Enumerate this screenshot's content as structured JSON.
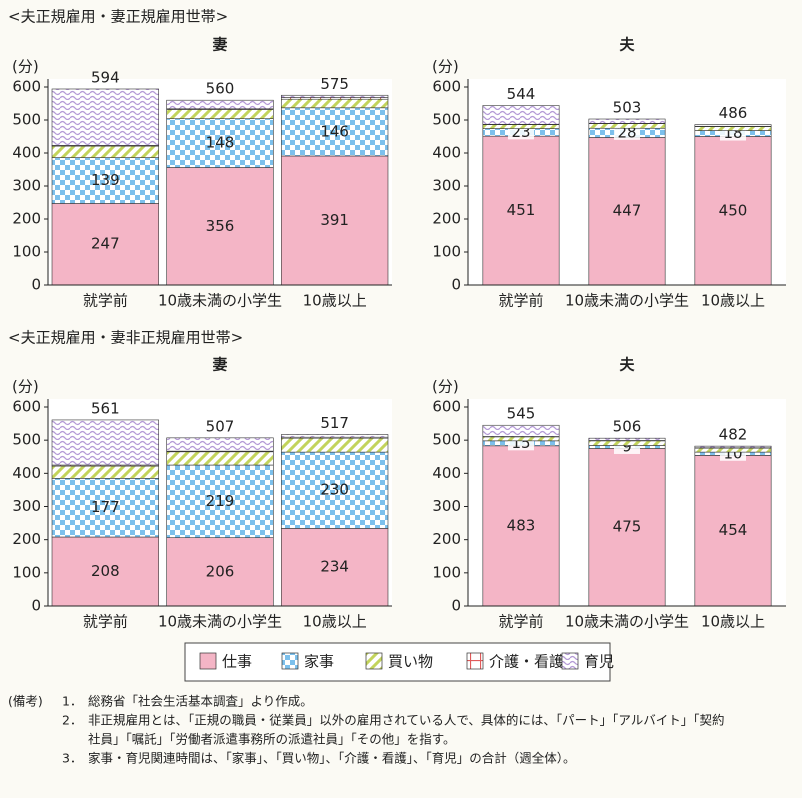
{
  "section_titles": [
    "<夫正規雇用・妻正規雇用世帯>",
    "<夫正規雇用・妻非正規雇用世帯>"
  ],
  "chart_data": [
    {
      "type": "bar",
      "stacked": true,
      "title": "妻",
      "ylabel": "(分)",
      "categories": [
        "就学前",
        "10歳未満の小学生",
        "10歳以上"
      ],
      "ylim": [
        0,
        600
      ],
      "yticks": [
        0,
        100,
        200,
        300,
        400,
        500,
        600
      ],
      "totals": [
        594,
        560,
        575
      ],
      "series": [
        {
          "name": "仕事",
          "color": "#f4b5c6",
          "pattern": "solid",
          "data_labels": true,
          "values": [
            247,
            356,
            391
          ]
        },
        {
          "name": "家事",
          "color": "#7cc0ec",
          "pattern": "check",
          "data_labels": true,
          "values": [
            139,
            148,
            146
          ]
        },
        {
          "name": "買い物",
          "color": "#c3d45c",
          "pattern": "hatch",
          "data_labels": false,
          "values": [
            35,
            28,
            26
          ]
        },
        {
          "name": "介護・看護",
          "color": "#e05a5a",
          "pattern": "grid",
          "data_labels": false,
          "values": [
            2,
            2,
            5
          ]
        },
        {
          "name": "育児",
          "color": "#b49ad6",
          "pattern": "wave",
          "data_labels": false,
          "values": [
            171,
            26,
            7
          ]
        }
      ]
    },
    {
      "type": "bar",
      "stacked": true,
      "title": "夫",
      "ylabel": "(分)",
      "categories": [
        "就学前",
        "10歳未満の小学生",
        "10歳以上"
      ],
      "ylim": [
        0,
        600
      ],
      "yticks": [
        0,
        100,
        200,
        300,
        400,
        500,
        600
      ],
      "totals": [
        544,
        503,
        486
      ],
      "series": [
        {
          "name": "仕事",
          "color": "#f4b5c6",
          "pattern": "solid",
          "data_labels": true,
          "values": [
            451,
            447,
            450
          ]
        },
        {
          "name": "家事",
          "color": "#7cc0ec",
          "pattern": "check",
          "data_labels": true,
          "values": [
            23,
            28,
            18
          ]
        },
        {
          "name": "買い物",
          "color": "#c3d45c",
          "pattern": "hatch",
          "data_labels": false,
          "values": [
            12,
            14,
            12
          ]
        },
        {
          "name": "介護・看護",
          "color": "#e05a5a",
          "pattern": "grid",
          "data_labels": false,
          "values": [
            1,
            1,
            1
          ]
        },
        {
          "name": "育児",
          "color": "#b49ad6",
          "pattern": "wave",
          "data_labels": false,
          "values": [
            57,
            13,
            5
          ]
        }
      ]
    },
    {
      "type": "bar",
      "stacked": true,
      "title": "妻",
      "ylabel": "(分)",
      "categories": [
        "就学前",
        "10歳未満の小学生",
        "10歳以上"
      ],
      "ylim": [
        0,
        600
      ],
      "yticks": [
        0,
        100,
        200,
        300,
        400,
        500,
        600
      ],
      "totals": [
        561,
        507,
        517
      ],
      "series": [
        {
          "name": "仕事",
          "color": "#f4b5c6",
          "pattern": "solid",
          "data_labels": true,
          "values": [
            208,
            206,
            234
          ]
        },
        {
          "name": "家事",
          "color": "#7cc0ec",
          "pattern": "check",
          "data_labels": true,
          "values": [
            177,
            219,
            230
          ]
        },
        {
          "name": "買い物",
          "color": "#c3d45c",
          "pattern": "hatch",
          "data_labels": false,
          "values": [
            37,
            40,
            42
          ]
        },
        {
          "name": "介護・看護",
          "color": "#e05a5a",
          "pattern": "grid",
          "data_labels": false,
          "values": [
            3,
            2,
            3
          ]
        },
        {
          "name": "育児",
          "color": "#b49ad6",
          "pattern": "wave",
          "data_labels": false,
          "values": [
            136,
            40,
            8
          ]
        }
      ]
    },
    {
      "type": "bar",
      "stacked": true,
      "title": "夫",
      "ylabel": "(分)",
      "categories": [
        "就学前",
        "10歳未満の小学生",
        "10歳以上"
      ],
      "ylim": [
        0,
        600
      ],
      "yticks": [
        0,
        100,
        200,
        300,
        400,
        500,
        600
      ],
      "totals": [
        545,
        506,
        482
      ],
      "series": [
        {
          "name": "仕事",
          "color": "#f4b5c6",
          "pattern": "solid",
          "data_labels": true,
          "values": [
            483,
            475,
            454
          ]
        },
        {
          "name": "家事",
          "color": "#7cc0ec",
          "pattern": "check",
          "data_labels": true,
          "values": [
            15,
            9,
            10
          ]
        },
        {
          "name": "買い物",
          "color": "#c3d45c",
          "pattern": "hatch",
          "data_labels": false,
          "values": [
            12,
            14,
            12
          ]
        },
        {
          "name": "介護・看護",
          "color": "#e05a5a",
          "pattern": "grid",
          "data_labels": false,
          "values": [
            1,
            1,
            1
          ]
        },
        {
          "name": "育児",
          "color": "#b49ad6",
          "pattern": "wave",
          "data_labels": false,
          "values": [
            34,
            7,
            5
          ]
        }
      ]
    }
  ],
  "notes": {
    "label": "(備考)",
    "items": [
      {
        "number": "1．",
        "lines": [
          "総務省「社会生活基本調査」より作成。"
        ]
      },
      {
        "number": "2．",
        "lines": [
          "非正規雇用とは、「正規の職員・従業員」以外の雇用されている人で、具体的には、「パート」「アルバイト」「契約",
          "社員」「嘱託」「労働者派遣事務所の派遣社員」「その他」を指す。"
        ]
      },
      {
        "number": "3．",
        "lines": [
          "家事・育児関連時間は、「家事」、「買い物」、「介護・看護」、「育児」の合計（週全体）。"
        ]
      }
    ]
  }
}
